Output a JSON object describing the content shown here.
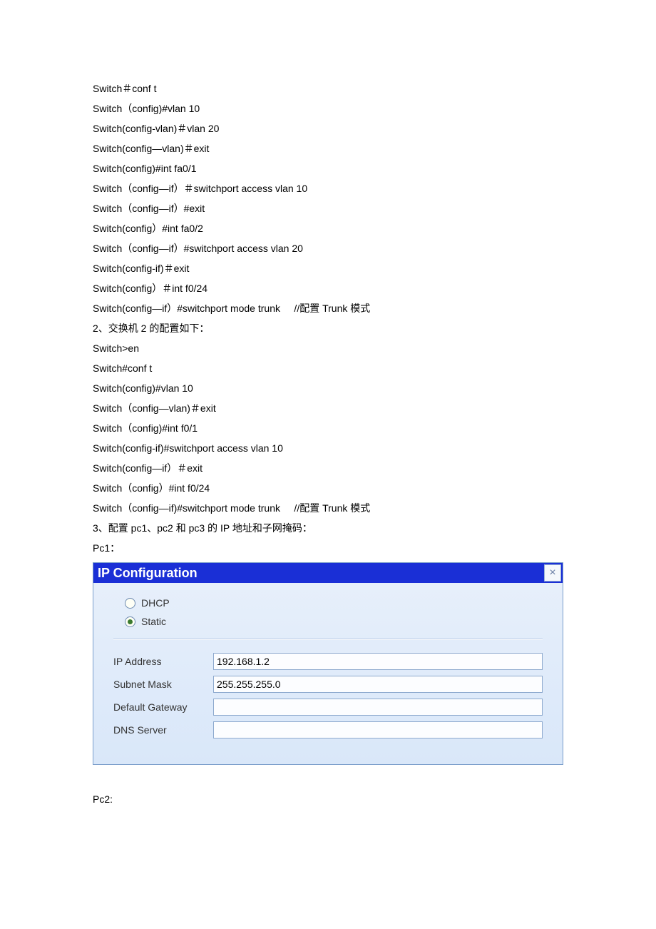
{
  "codeLines": [
    "Switch＃conf t",
    "Switch（config)#vlan 10",
    "Switch(config-vlan)＃vlan 20",
    "Switch(config—vlan)＃exit",
    "Switch(config)#int fa0/1",
    "Switch（config—if）＃switchport access vlan 10",
    "Switch（config—if）#exit",
    "Switch(config）#int fa0/2",
    "Switch（config—if）#switchport access vlan 20",
    "Switch(config-if)＃exit",
    "Switch(config）＃int f0/24",
    "Switch(config—if）#switchport mode trunk     //配置 Trunk 模式",
    "2、交换机 2 的配置如下：",
    "Switch>en",
    "Switch#conf t",
    "Switch(config)#vlan 10",
    "Switch（config—vlan)＃exit",
    "Switch（config)#int f0/1",
    "Switch(config-if)#switchport access vlan 10",
    "Switch(config—if）＃exit",
    "Switch（config）#int f0/24",
    "Switch（config—if)#switchport mode trunk     //配置 Trunk 模式",
    "3、配置 pc1、pc2 和 pc3 的 IP 地址和子网掩码：",
    "Pc1："
  ],
  "panel": {
    "title": "IP Configuration",
    "header_bg": "#1a2fd6",
    "title_color": "#ffffff",
    "body_bg_top": "#e8f0fb",
    "body_bg_bottom": "#d9e7f9",
    "border_color": "#7a9ecb",
    "input_border": "#8da9ce",
    "input_bg": "#fcfdff",
    "close_label": "×",
    "radios": {
      "dhcp": {
        "label": "DHCP",
        "selected": false
      },
      "static": {
        "label": "Static",
        "selected": true
      }
    },
    "selected_dot_color": "#3a7a2e",
    "fields": {
      "ip": {
        "label": "IP Address",
        "value": "192.168.1.2"
      },
      "mask": {
        "label": "Subnet Mask",
        "value": "255.255.255.0"
      },
      "gateway": {
        "label": "Default Gateway",
        "value": ""
      },
      "dns": {
        "label": "DNS Server",
        "value": ""
      }
    }
  },
  "afterText": "Pc2:"
}
